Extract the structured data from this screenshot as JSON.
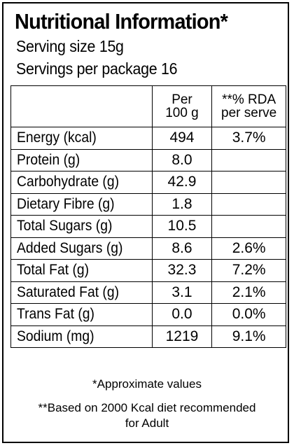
{
  "header": {
    "title": "Nutritional Information*",
    "serving_size": "Serving size 15g",
    "servings_per_package": "Servings per package 16"
  },
  "table": {
    "columns": {
      "per_100g_line1": "Per",
      "per_100g_line2": "100 g",
      "rda_line1": "**% RDA",
      "rda_line2": "per serve"
    },
    "rows": [
      {
        "nutrient": "Energy (kcal)",
        "per_100g": "494",
        "rda": "3.7%"
      },
      {
        "nutrient": "Protein (g)",
        "per_100g": "8.0",
        "rda": ""
      },
      {
        "nutrient": "Carbohydrate (g)",
        "per_100g": "42.9",
        "rda": ""
      },
      {
        "nutrient": "Dietary Fibre (g)",
        "per_100g": "1.8",
        "rda": ""
      },
      {
        "nutrient": "Total Sugars (g)",
        "per_100g": "10.5",
        "rda": ""
      },
      {
        "nutrient": "Added Sugars (g)",
        "per_100g": "8.6",
        "rda": "2.6%"
      },
      {
        "nutrient": "Total Fat (g)",
        "per_100g": "32.3",
        "rda": "7.2%"
      },
      {
        "nutrient": "Saturated Fat (g)",
        "per_100g": "3.1",
        "rda": "2.1%"
      },
      {
        "nutrient": "Trans Fat (g)",
        "per_100g": "0.0",
        "rda": "0.0%"
      },
      {
        "nutrient": "Sodium (mg)",
        "per_100g": "1219",
        "rda": "9.1%"
      }
    ]
  },
  "footer": {
    "approximate_note": "*Approximate values",
    "diet_note_line1": "**Based on 2000 Kcal diet recommended",
    "diet_note_line2": "for Adult"
  }
}
